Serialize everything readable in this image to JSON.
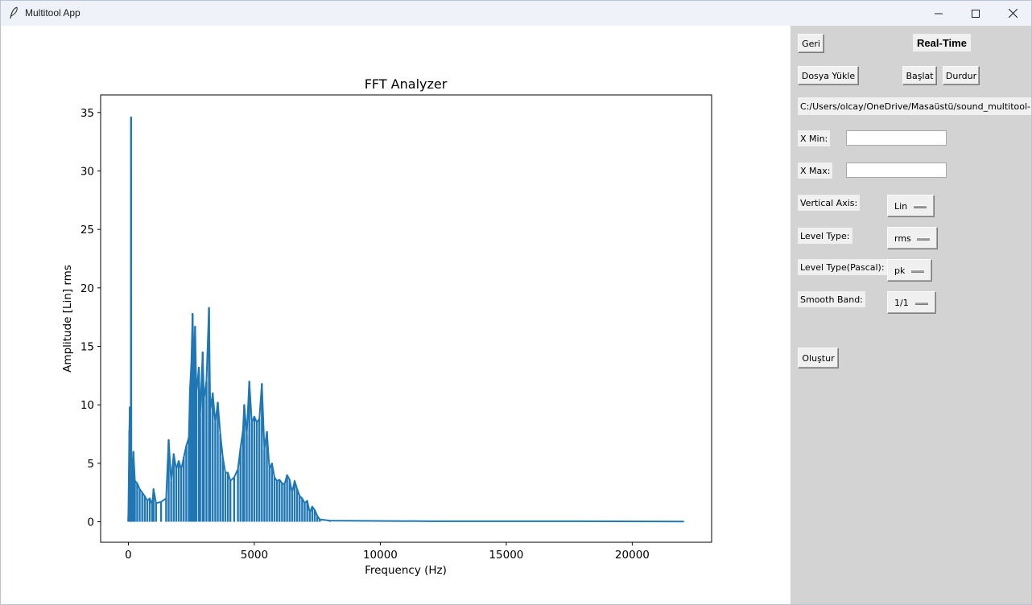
{
  "window": {
    "title": "Multitool App",
    "icon": "feather-icon",
    "controls": [
      "minimize-icon",
      "maximize-icon",
      "close-icon"
    ]
  },
  "panel": {
    "back_label": "Geri",
    "mode_title": "Real-Time",
    "load_label": "Dosya Yükle",
    "start_label": "Başlat",
    "stop_label": "Durdur",
    "file_path": "C:/Users/olcay/OneDrive/Masaüstü/sound_multitool-m",
    "xmin_label": "X Min:",
    "xmin_value": "",
    "xmax_label": "X Max:",
    "xmax_value": "",
    "vertical_axis_label": "Vertical Axis:",
    "vertical_axis_value": "Lin",
    "level_type_label": "Level Type:",
    "level_type_value": "rms",
    "level_type_pascal_label": "Level Type(Pascal):",
    "level_type_pascal_value": "pk",
    "smooth_band_label": "Smooth Band:",
    "smooth_band_value": "1/1",
    "create_label": "Oluştur"
  },
  "chart_data": {
    "type": "line",
    "title": "FFT Analyzer",
    "xlabel": "Frequency (Hz)",
    "ylabel": "Amplitude [Lin] rms",
    "xlim": [
      -1100,
      23150
    ],
    "ylim": [
      -1.75,
      36.5
    ],
    "xticks": [
      0,
      5000,
      10000,
      15000,
      20000
    ],
    "yticks": [
      0,
      5,
      10,
      15,
      20,
      25,
      30,
      35
    ],
    "grid": false,
    "series_color": "#1f77b4",
    "peaks": [
      {
        "x": 0,
        "y": 0.5
      },
      {
        "x": 40,
        "y": 7.8
      },
      {
        "x": 60,
        "y": 9.8
      },
      {
        "x": 80,
        "y": 2
      },
      {
        "x": 100,
        "y": 6
      },
      {
        "x": 110,
        "y": 34.6
      },
      {
        "x": 120,
        "y": 2
      },
      {
        "x": 150,
        "y": 4
      },
      {
        "x": 200,
        "y": 6
      },
      {
        "x": 260,
        "y": 3.5
      },
      {
        "x": 350,
        "y": 3.3
      },
      {
        "x": 450,
        "y": 2.8
      },
      {
        "x": 550,
        "y": 2.5
      },
      {
        "x": 650,
        "y": 2.2
      },
      {
        "x": 750,
        "y": 1.8
      },
      {
        "x": 850,
        "y": 2
      },
      {
        "x": 950,
        "y": 1.5
      },
      {
        "x": 1000,
        "y": 2.8
      },
      {
        "x": 1100,
        "y": 1.6
      },
      {
        "x": 1300,
        "y": 1.7
      },
      {
        "x": 1500,
        "y": 2
      },
      {
        "x": 1600,
        "y": 7
      },
      {
        "x": 1700,
        "y": 3.5
      },
      {
        "x": 1800,
        "y": 5.8
      },
      {
        "x": 1900,
        "y": 4.5
      },
      {
        "x": 2000,
        "y": 5.2
      },
      {
        "x": 2100,
        "y": 4.5
      },
      {
        "x": 2200,
        "y": 5.5
      },
      {
        "x": 2300,
        "y": 6.5
      },
      {
        "x": 2400,
        "y": 7.2
      },
      {
        "x": 2450,
        "y": 11.5
      },
      {
        "x": 2500,
        "y": 13.5
      },
      {
        "x": 2550,
        "y": 17.8
      },
      {
        "x": 2600,
        "y": 13
      },
      {
        "x": 2650,
        "y": 16.7
      },
      {
        "x": 2700,
        "y": 11
      },
      {
        "x": 2800,
        "y": 13.2
      },
      {
        "x": 2850,
        "y": 9
      },
      {
        "x": 2950,
        "y": 14.5
      },
      {
        "x": 3000,
        "y": 10.5
      },
      {
        "x": 3100,
        "y": 12
      },
      {
        "x": 3200,
        "y": 18.3
      },
      {
        "x": 3250,
        "y": 9.5
      },
      {
        "x": 3350,
        "y": 11
      },
      {
        "x": 3450,
        "y": 8.5
      },
      {
        "x": 3550,
        "y": 10.2
      },
      {
        "x": 3650,
        "y": 7.5
      },
      {
        "x": 3750,
        "y": 5.5
      },
      {
        "x": 3850,
        "y": 4.2
      },
      {
        "x": 3950,
        "y": 4.2
      },
      {
        "x": 4050,
        "y": 3.5
      },
      {
        "x": 4200,
        "y": 3.8
      },
      {
        "x": 4350,
        "y": 4.5
      },
      {
        "x": 4450,
        "y": 6.3
      },
      {
        "x": 4550,
        "y": 7.8
      },
      {
        "x": 4600,
        "y": 10
      },
      {
        "x": 4700,
        "y": 7.5
      },
      {
        "x": 4800,
        "y": 12
      },
      {
        "x": 4900,
        "y": 8.5
      },
      {
        "x": 5000,
        "y": 9
      },
      {
        "x": 5100,
        "y": 8.5
      },
      {
        "x": 5200,
        "y": 8.8
      },
      {
        "x": 5300,
        "y": 11.8
      },
      {
        "x": 5400,
        "y": 6.2
      },
      {
        "x": 5500,
        "y": 7.7
      },
      {
        "x": 5600,
        "y": 4.5
      },
      {
        "x": 5700,
        "y": 5
      },
      {
        "x": 5800,
        "y": 3.8
      },
      {
        "x": 5900,
        "y": 3.5
      },
      {
        "x": 6000,
        "y": 3.6
      },
      {
        "x": 6100,
        "y": 3.3
      },
      {
        "x": 6200,
        "y": 3.2
      },
      {
        "x": 6300,
        "y": 4
      },
      {
        "x": 6400,
        "y": 3.6
      },
      {
        "x": 6500,
        "y": 2.5
      },
      {
        "x": 6600,
        "y": 3.5
      },
      {
        "x": 6700,
        "y": 2.8
      },
      {
        "x": 6800,
        "y": 2.2
      },
      {
        "x": 6900,
        "y": 2
      },
      {
        "x": 7000,
        "y": 1.6
      },
      {
        "x": 7100,
        "y": 1.8
      },
      {
        "x": 7200,
        "y": 0.8
      },
      {
        "x": 7300,
        "y": 1.3
      },
      {
        "x": 7400,
        "y": 1
      },
      {
        "x": 7500,
        "y": 0.5
      },
      {
        "x": 7600,
        "y": 0.2
      },
      {
        "x": 8000,
        "y": 0.1
      },
      {
        "x": 12000,
        "y": 0.05
      },
      {
        "x": 18000,
        "y": 0.05
      },
      {
        "x": 22050,
        "y": 0.02
      }
    ]
  }
}
